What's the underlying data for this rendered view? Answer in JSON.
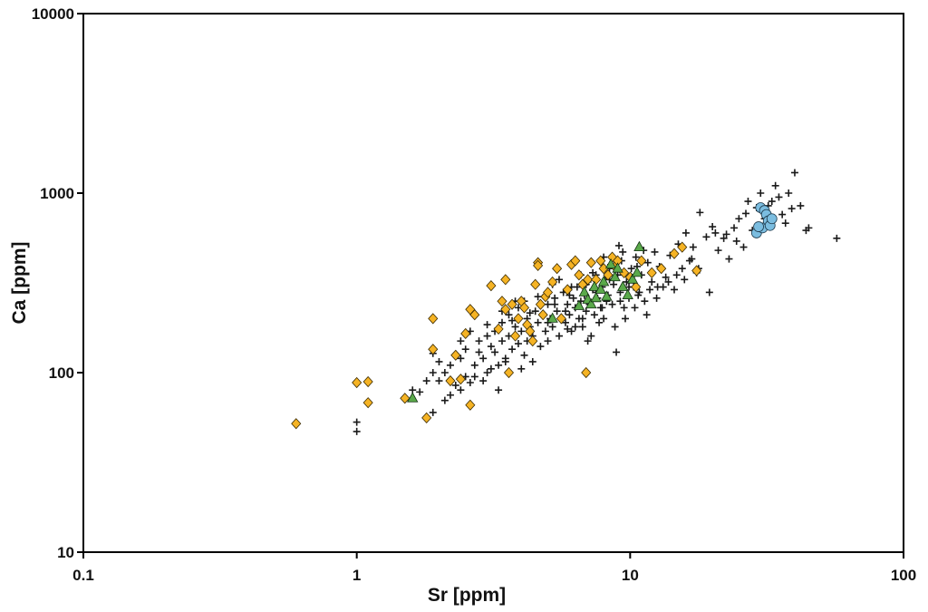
{
  "chart_data": {
    "type": "scatter",
    "title": "",
    "xlabel": "Sr [ppm]",
    "ylabel": "Ca [ppm]",
    "xscale": "log",
    "yscale": "log",
    "xlim": [
      0.1,
      100
    ],
    "ylim": [
      10,
      10000
    ],
    "xticks": [
      0.1,
      1,
      10,
      100
    ],
    "xtick_labels": [
      "0.1",
      "1",
      "10",
      "100"
    ],
    "yticks": [
      10,
      100,
      1000,
      10000
    ],
    "ytick_labels": [
      "10",
      "100",
      "1000",
      "10000"
    ],
    "grid": false,
    "legend": "none",
    "series": [
      {
        "marker": "plus",
        "color": "#1a1a1a",
        "points": [
          [
            1.0,
            47
          ],
          [
            1.0,
            53
          ],
          [
            1.1,
            88
          ],
          [
            1.5,
            72
          ],
          [
            1.6,
            80
          ],
          [
            1.8,
            90
          ],
          [
            1.9,
            100
          ],
          [
            1.9,
            128
          ],
          [
            2.0,
            115
          ],
          [
            2.1,
            100
          ],
          [
            2.2,
            110
          ],
          [
            2.3,
            85
          ],
          [
            2.4,
            120
          ],
          [
            2.4,
            150
          ],
          [
            2.5,
            95
          ],
          [
            2.5,
            135
          ],
          [
            2.6,
            170
          ],
          [
            2.7,
            110
          ],
          [
            2.8,
            130
          ],
          [
            2.8,
            150
          ],
          [
            2.9,
            120
          ],
          [
            3.0,
            160
          ],
          [
            3.0,
            100
          ],
          [
            3.1,
            140
          ],
          [
            3.2,
            130
          ],
          [
            3.2,
            170
          ],
          [
            3.3,
            110
          ],
          [
            3.4,
            150
          ],
          [
            3.4,
            190
          ],
          [
            3.5,
            120
          ],
          [
            3.6,
            160
          ],
          [
            3.6,
            210
          ],
          [
            3.7,
            135
          ],
          [
            3.8,
            180
          ],
          [
            3.9,
            145
          ],
          [
            3.9,
            230
          ],
          [
            4.0,
            170
          ],
          [
            4.1,
            125
          ],
          [
            4.2,
            200
          ],
          [
            4.2,
            150
          ],
          [
            4.3,
            180
          ],
          [
            4.4,
            160
          ],
          [
            4.5,
            220
          ],
          [
            4.6,
            190
          ],
          [
            4.7,
            140
          ],
          [
            4.8,
            210
          ],
          [
            4.9,
            170
          ],
          [
            5.0,
            240
          ],
          [
            5.0,
            150
          ],
          [
            5.1,
            200
          ],
          [
            5.2,
            180
          ],
          [
            5.3,
            260
          ],
          [
            5.4,
            220
          ],
          [
            5.5,
            160
          ],
          [
            5.6,
            200
          ],
          [
            5.7,
            280
          ],
          [
            5.8,
            190
          ],
          [
            5.9,
            240
          ],
          [
            6.0,
            210
          ],
          [
            6.1,
            170
          ],
          [
            6.2,
            260
          ],
          [
            6.3,
            230
          ],
          [
            6.4,
            300
          ],
          [
            6.5,
            200
          ],
          [
            6.6,
            250
          ],
          [
            6.7,
            180
          ],
          [
            6.8,
            270
          ],
          [
            6.9,
            220
          ],
          [
            7.0,
            320
          ],
          [
            7.1,
            240
          ],
          [
            7.2,
            160
          ],
          [
            7.3,
            290
          ],
          [
            7.4,
            210
          ],
          [
            7.5,
            350
          ],
          [
            7.6,
            260
          ],
          [
            7.8,
            230
          ],
          [
            7.9,
            300
          ],
          [
            8.0,
            200
          ],
          [
            8.1,
            330
          ],
          [
            8.3,
            270
          ],
          [
            8.4,
            380
          ],
          [
            8.6,
            240
          ],
          [
            8.7,
            310
          ],
          [
            8.8,
            180
          ],
          [
            9.0,
            350
          ],
          [
            9.2,
            280
          ],
          [
            9.3,
            420
          ],
          [
            9.5,
            230
          ],
          [
            9.7,
            320
          ],
          [
            9.9,
            260
          ],
          [
            10.1,
            380
          ],
          [
            10.3,
            300
          ],
          [
            10.5,
            440
          ],
          [
            10.8,
            280
          ],
          [
            11.0,
            350
          ],
          [
            11.3,
            250
          ],
          [
            11.6,
            410
          ],
          [
            12.0,
            320
          ],
          [
            12.3,
            470
          ],
          [
            12.6,
            300
          ],
          [
            13.0,
            380
          ],
          [
            13.5,
            340
          ],
          [
            14.0,
            450
          ],
          [
            14.5,
            290
          ],
          [
            15.0,
            520
          ],
          [
            15.5,
            380
          ],
          [
            16.0,
            600
          ],
          [
            16.5,
            420
          ],
          [
            17.0,
            500
          ],
          [
            17.5,
            360
          ],
          [
            18.0,
            780
          ],
          [
            19.0,
            570
          ],
          [
            19.5,
            280
          ],
          [
            20.0,
            650
          ],
          [
            21.0,
            480
          ],
          [
            22.0,
            560
          ],
          [
            23.0,
            430
          ],
          [
            24.0,
            640
          ],
          [
            25.0,
            720
          ],
          [
            26.0,
            500
          ],
          [
            27.0,
            900
          ],
          [
            28.0,
            620
          ],
          [
            30.0,
            1000
          ],
          [
            31.0,
            720
          ],
          [
            33.0,
            900
          ],
          [
            34.0,
            1100
          ],
          [
            36.0,
            760
          ],
          [
            38.0,
            1000
          ],
          [
            40.0,
            1300
          ],
          [
            42.0,
            850
          ],
          [
            44.0,
            620
          ],
          [
            45.0,
            640
          ],
          [
            57.0,
            560
          ],
          [
            3.0,
            185
          ],
          [
            3.7,
            195
          ],
          [
            4.1,
            250
          ],
          [
            4.6,
            265
          ],
          [
            5.2,
            310
          ],
          [
            5.8,
            220
          ],
          [
            6.3,
            180
          ],
          [
            7.0,
            150
          ],
          [
            7.7,
            190
          ],
          [
            8.2,
            250
          ],
          [
            8.9,
            130
          ],
          [
            9.6,
            200
          ],
          [
            10.4,
            230
          ],
          [
            11.5,
            210
          ],
          [
            12.5,
            260
          ],
          [
            2.7,
            95
          ],
          [
            3.3,
            80
          ],
          [
            3.6,
            100
          ],
          [
            4.0,
            105
          ],
          [
            4.4,
            115
          ],
          [
            2.2,
            75
          ],
          [
            2.9,
            90
          ],
          [
            6.9,
            310
          ],
          [
            7.3,
            360
          ],
          [
            8.5,
            400
          ],
          [
            9.4,
            470
          ],
          [
            10.6,
            390
          ],
          [
            5.5,
            330
          ],
          [
            6.0,
            270
          ],
          [
            6.6,
            350
          ],
          [
            8.0,
            440
          ],
          [
            9.1,
            510
          ],
          [
            12.8,
            390
          ],
          [
            13.8,
            320
          ],
          [
            15.8,
            330
          ],
          [
            16.8,
            430
          ],
          [
            20.5,
            600
          ],
          [
            26.5,
            770
          ],
          [
            29.0,
            830
          ],
          [
            32.0,
            850
          ],
          [
            35.0,
            950
          ],
          [
            37.0,
            680
          ],
          [
            39.0,
            820
          ],
          [
            24.5,
            540
          ],
          [
            22.5,
            590
          ],
          [
            4.9,
            270
          ],
          [
            5.3,
            240
          ],
          [
            6.1,
            300
          ],
          [
            7.5,
            280
          ],
          [
            8.4,
            330
          ],
          [
            9.9,
            300
          ],
          [
            11.2,
            480
          ],
          [
            3.8,
            250
          ],
          [
            3.4,
            220
          ],
          [
            4.3,
            215
          ],
          [
            5.0,
            190
          ],
          [
            5.9,
            175
          ],
          [
            6.7,
            200
          ],
          [
            7.9,
            230
          ],
          [
            9.2,
            250
          ],
          [
            10.7,
            270
          ],
          [
            11.8,
            290
          ],
          [
            13.2,
            300
          ],
          [
            14.8,
            350
          ],
          [
            17.8,
            380
          ],
          [
            1.9,
            60
          ],
          [
            2.1,
            70
          ],
          [
            2.4,
            80
          ],
          [
            2.6,
            88
          ],
          [
            3.1,
            105
          ],
          [
            3.5,
            115
          ],
          [
            1.7,
            78
          ],
          [
            2.0,
            90
          ]
        ]
      },
      {
        "marker": "diamond",
        "color": "#f5b324",
        "points": [
          [
            0.6,
            52
          ],
          [
            1.0,
            88
          ],
          [
            1.1,
            89
          ],
          [
            1.1,
            68
          ],
          [
            1.5,
            72
          ],
          [
            1.8,
            56
          ],
          [
            1.9,
            200
          ],
          [
            1.9,
            135
          ],
          [
            2.2,
            90
          ],
          [
            2.3,
            125
          ],
          [
            2.4,
            92
          ],
          [
            2.5,
            165
          ],
          [
            2.6,
            66
          ],
          [
            2.6,
            225
          ],
          [
            2.7,
            210
          ],
          [
            3.1,
            305
          ],
          [
            3.3,
            175
          ],
          [
            3.4,
            250
          ],
          [
            3.5,
            330
          ],
          [
            3.5,
            225
          ],
          [
            3.6,
            100
          ],
          [
            3.7,
            240
          ],
          [
            3.8,
            160
          ],
          [
            3.9,
            200
          ],
          [
            4.0,
            250
          ],
          [
            4.1,
            230
          ],
          [
            4.2,
            185
          ],
          [
            4.3,
            170
          ],
          [
            4.4,
            150
          ],
          [
            4.5,
            310
          ],
          [
            4.6,
            410
          ],
          [
            4.6,
            395
          ],
          [
            4.7,
            240
          ],
          [
            4.8,
            210
          ],
          [
            4.9,
            265
          ],
          [
            5.0,
            280
          ],
          [
            5.2,
            320
          ],
          [
            5.4,
            380
          ],
          [
            5.6,
            200
          ],
          [
            5.9,
            290
          ],
          [
            6.1,
            400
          ],
          [
            6.3,
            420
          ],
          [
            6.5,
            350
          ],
          [
            6.7,
            310
          ],
          [
            6.9,
            100
          ],
          [
            7.0,
            330
          ],
          [
            7.2,
            410
          ],
          [
            7.5,
            330
          ],
          [
            7.8,
            420
          ],
          [
            8.0,
            380
          ],
          [
            8.3,
            350
          ],
          [
            8.6,
            440
          ],
          [
            8.8,
            390
          ],
          [
            9.0,
            420
          ],
          [
            9.5,
            360
          ],
          [
            10.0,
            340
          ],
          [
            10.5,
            300
          ],
          [
            11.0,
            420
          ],
          [
            12.0,
            360
          ],
          [
            13.0,
            380
          ],
          [
            14.5,
            460
          ],
          [
            15.5,
            500
          ],
          [
            17.5,
            370
          ]
        ]
      },
      {
        "marker": "triangle",
        "color": "#5aa94a",
        "points": [
          [
            1.6,
            72
          ],
          [
            5.2,
            200
          ],
          [
            6.5,
            235
          ],
          [
            6.8,
            280
          ],
          [
            7.0,
            255
          ],
          [
            7.2,
            240
          ],
          [
            7.4,
            300
          ],
          [
            7.5,
            260
          ],
          [
            7.8,
            290
          ],
          [
            8.0,
            320
          ],
          [
            8.2,
            265
          ],
          [
            8.5,
            400
          ],
          [
            8.8,
            340
          ],
          [
            9.0,
            380
          ],
          [
            9.4,
            300
          ],
          [
            9.8,
            270
          ],
          [
            10.2,
            330
          ],
          [
            10.6,
            360
          ],
          [
            10.8,
            500
          ]
        ]
      },
      {
        "marker": "circle",
        "color": "#7bbde0",
        "points": [
          [
            29.0,
            600
          ],
          [
            30.0,
            830
          ],
          [
            30.5,
            640
          ],
          [
            31.0,
            800
          ],
          [
            31.5,
            760
          ],
          [
            32.0,
            700
          ],
          [
            32.5,
            660
          ],
          [
            33.0,
            720
          ],
          [
            29.5,
            650
          ]
        ]
      }
    ]
  }
}
